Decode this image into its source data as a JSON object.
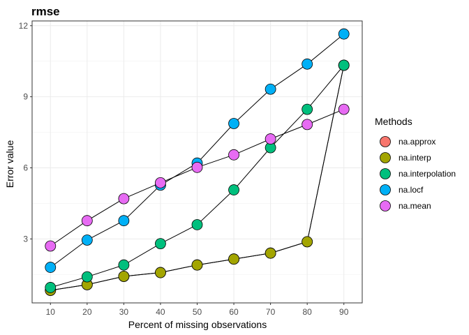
{
  "chart_data": {
    "type": "scatter",
    "title": "rmse",
    "xlabel": "Percent of missing observations",
    "ylabel": "Error value",
    "x": [
      10,
      20,
      30,
      40,
      50,
      60,
      70,
      80,
      90
    ],
    "xlim": [
      5,
      95
    ],
    "ylim": [
      0.3,
      12.2
    ],
    "xticks": [
      10,
      20,
      30,
      40,
      50,
      60,
      70,
      80,
      90
    ],
    "yticks": [
      3,
      6,
      9,
      12
    ],
    "grid": true,
    "legend": {
      "title": "Methods",
      "position": "right"
    },
    "series": [
      {
        "name": "na.approx",
        "color": "#F8766D",
        "values": [
          0.83,
          1.07,
          1.42,
          1.58,
          1.9,
          2.15,
          2.4,
          2.88,
          10.33
        ]
      },
      {
        "name": "na.interp",
        "color": "#A3A500",
        "values": [
          0.83,
          1.07,
          1.42,
          1.58,
          1.9,
          2.15,
          2.4,
          2.88,
          10.33
        ]
      },
      {
        "name": "na.interpolation",
        "color": "#00BF7D",
        "values": [
          0.95,
          1.4,
          1.9,
          2.8,
          3.6,
          5.07,
          6.85,
          8.47,
          10.33
        ]
      },
      {
        "name": "na.locf",
        "color": "#00B0F6",
        "values": [
          1.8,
          2.95,
          3.77,
          5.27,
          6.2,
          7.87,
          9.32,
          10.38,
          11.65
        ]
      },
      {
        "name": "na.mean",
        "color": "#E76BF3",
        "values": [
          2.7,
          3.77,
          4.7,
          5.37,
          6.02,
          6.55,
          7.22,
          7.83,
          8.47
        ]
      }
    ]
  }
}
